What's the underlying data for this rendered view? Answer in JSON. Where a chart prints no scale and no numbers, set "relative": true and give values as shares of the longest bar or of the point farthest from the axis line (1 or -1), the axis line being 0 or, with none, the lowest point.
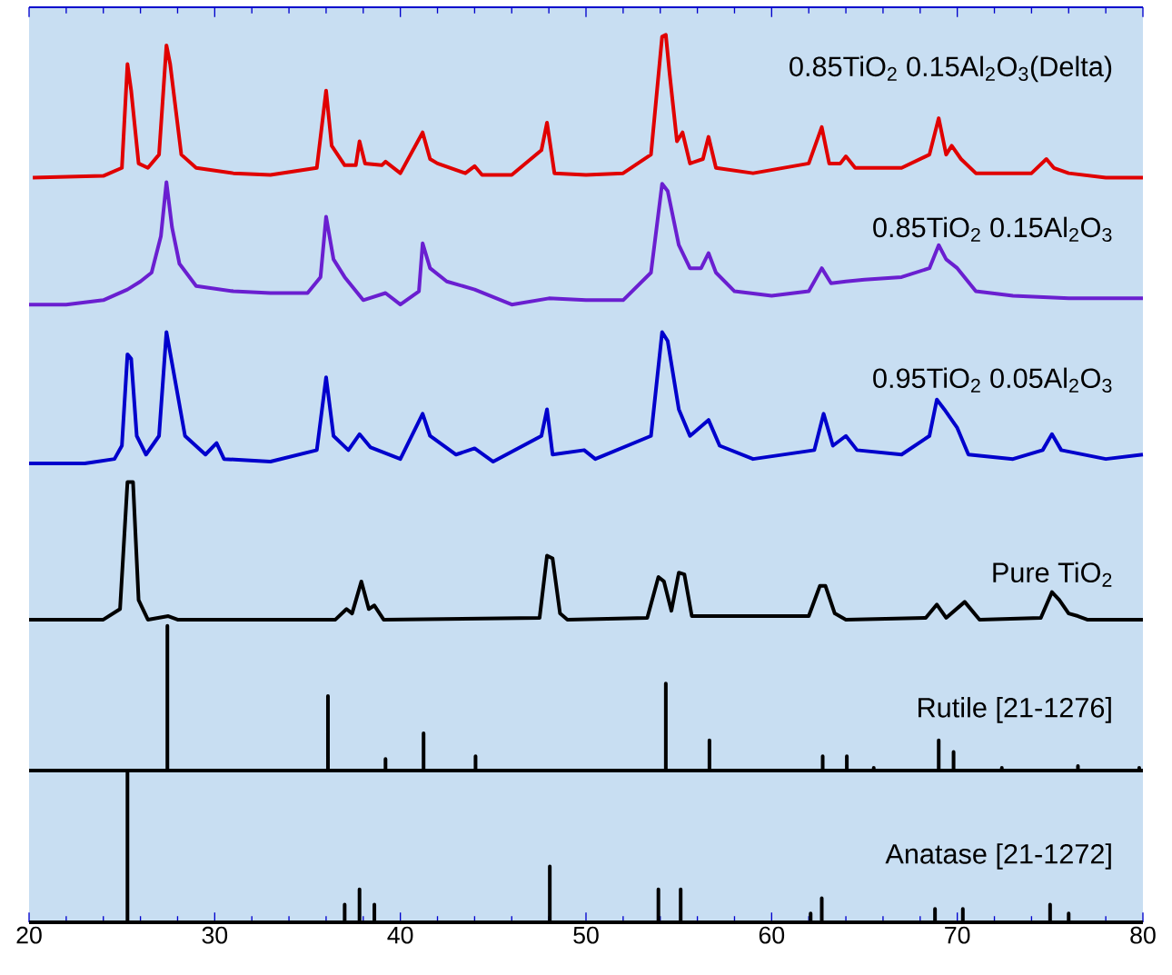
{
  "chart_data": {
    "type": "line",
    "relative": true,
    "xlim": [
      20,
      80
    ],
    "xticks": [
      20,
      30,
      40,
      50,
      60,
      70,
      80
    ],
    "series": [
      {
        "name": "0.85TiO$_{2}$ 0.15Al$_{2}$O$_{3}$(Delta)",
        "color": "#e00000",
        "x": [
          20.2,
          24,
          25.0,
          25.3,
          25.5,
          25.9,
          26.4,
          27.0,
          27.4,
          27.6,
          28.2,
          29,
          31,
          33,
          35.5,
          36.0,
          36.3,
          37,
          37.6,
          37.8,
          38.1,
          39.0,
          39.2,
          40,
          41.2,
          41.6,
          42,
          43.5,
          44,
          44.4,
          46,
          47.6,
          47.9,
          48.3,
          50,
          52,
          53.5,
          54.1,
          54.3,
          54.5,
          54.9,
          55.2,
          55.6,
          56.3,
          56.6,
          57,
          59,
          62,
          62.7,
          63.1,
          63.7,
          64.0,
          64.5,
          67,
          68.5,
          69.0,
          69.4,
          69.7,
          70.2,
          71,
          74,
          74.8,
          75.2,
          76,
          78,
          80
        ],
        "values": [
          0.839,
          0.841,
          0.85,
          0.967,
          0.937,
          0.855,
          0.85,
          0.865,
          0.988,
          0.967,
          0.865,
          0.85,
          0.844,
          0.842,
          0.85,
          0.937,
          0.875,
          0.853,
          0.853,
          0.88,
          0.855,
          0.853,
          0.857,
          0.844,
          0.89,
          0.86,
          0.855,
          0.844,
          0.852,
          0.842,
          0.842,
          0.87,
          0.901,
          0.844,
          0.842,
          0.844,
          0.865,
          0.998,
          1.0,
          0.957,
          0.88,
          0.89,
          0.855,
          0.86,
          0.885,
          0.85,
          0.844,
          0.855,
          0.896,
          0.855,
          0.855,
          0.863,
          0.85,
          0.85,
          0.865,
          0.906,
          0.865,
          0.875,
          0.86,
          0.844,
          0.844,
          0.86,
          0.85,
          0.844,
          0.839,
          0.839
        ]
      },
      {
        "name": "0.85TiO$_{2}$ 0.15Al$_{2}$O$_{3}$",
        "color": "#6a1fd0",
        "x": [
          20,
          22,
          24,
          25.3,
          26,
          26.6,
          27.1,
          27.4,
          27.7,
          28.1,
          29,
          31,
          33,
          35,
          35.7,
          36.0,
          36.4,
          37,
          38,
          39.2,
          40,
          41.0,
          41.2,
          41.6,
          42.5,
          44,
          46,
          48,
          50,
          52,
          53.5,
          54.1,
          54.4,
          55,
          55.6,
          56.2,
          56.6,
          57,
          58,
          60,
          62,
          62.7,
          63.2,
          64.0,
          65,
          67,
          68.5,
          69.0,
          69.4,
          70,
          71,
          73,
          76,
          80
        ],
        "values": [
          0.696,
          0.696,
          0.701,
          0.713,
          0.722,
          0.732,
          0.773,
          0.834,
          0.783,
          0.742,
          0.717,
          0.711,
          0.709,
          0.709,
          0.727,
          0.795,
          0.747,
          0.727,
          0.701,
          0.709,
          0.696,
          0.711,
          0.765,
          0.737,
          0.722,
          0.713,
          0.696,
          0.703,
          0.701,
          0.701,
          0.732,
          0.832,
          0.824,
          0.763,
          0.737,
          0.737,
          0.754,
          0.732,
          0.711,
          0.706,
          0.711,
          0.737,
          0.72,
          0.722,
          0.724,
          0.727,
          0.737,
          0.763,
          0.747,
          0.737,
          0.711,
          0.706,
          0.703,
          0.703
        ]
      },
      {
        "name": "0.95TiO$_{2}$ 0.05Al$_{2}$O$_{3}$",
        "color": "#0000cc",
        "x": [
          20,
          23,
          24.6,
          25.0,
          25.3,
          25.5,
          25.8,
          26.3,
          27.0,
          27.4,
          27.7,
          28.4,
          29.5,
          30.1,
          30.5,
          33,
          35.5,
          36.0,
          36.4,
          37.2,
          37.8,
          38.4,
          40,
          41.2,
          41.6,
          43,
          44,
          45,
          47.6,
          47.9,
          48.2,
          49.9,
          50.5,
          53.5,
          54.1,
          54.4,
          55,
          55.6,
          56.6,
          57.2,
          59,
          62.3,
          62.8,
          63.3,
          64,
          64.6,
          67,
          68.5,
          68.9,
          69.3,
          70,
          70.6,
          73,
          74.6,
          75.1,
          75.6,
          78,
          80
        ],
        "values": [
          0.517,
          0.517,
          0.522,
          0.537,
          0.64,
          0.635,
          0.548,
          0.527,
          0.548,
          0.665,
          0.63,
          0.548,
          0.527,
          0.54,
          0.522,
          0.519,
          0.532,
          0.614,
          0.548,
          0.532,
          0.55,
          0.535,
          0.522,
          0.573,
          0.548,
          0.527,
          0.534,
          0.519,
          0.548,
          0.578,
          0.527,
          0.532,
          0.522,
          0.548,
          0.665,
          0.655,
          0.578,
          0.548,
          0.566,
          0.537,
          0.522,
          0.532,
          0.573,
          0.537,
          0.548,
          0.532,
          0.527,
          0.548,
          0.589,
          0.578,
          0.557,
          0.527,
          0.522,
          0.532,
          0.55,
          0.532,
          0.522,
          0.527
        ]
      },
      {
        "name": "Pure TiO$_{2}$",
        "color": "#000000",
        "x": [
          20,
          24,
          24.9,
          25.3,
          25.6,
          25.9,
          26.4,
          27.5,
          28,
          36.5,
          37.1,
          37.4,
          37.9,
          38.3,
          38.6,
          39.1,
          47.5,
          47.9,
          48.2,
          48.6,
          49,
          53.3,
          53.9,
          54.2,
          54.6,
          55.0,
          55.3,
          55.7,
          62,
          62.6,
          62.9,
          63.4,
          64,
          68.3,
          68.9,
          69.4,
          70.4,
          71.2,
          74.5,
          75.1,
          75.5,
          76,
          76.5,
          77,
          80
        ],
        "values": [
          0.341,
          0.341,
          0.353,
          0.496,
          0.496,
          0.363,
          0.341,
          0.345,
          0.341,
          0.341,
          0.353,
          0.348,
          0.384,
          0.353,
          0.357,
          0.341,
          0.343,
          0.413,
          0.41,
          0.348,
          0.341,
          0.343,
          0.389,
          0.384,
          0.351,
          0.394,
          0.392,
          0.345,
          0.345,
          0.379,
          0.379,
          0.348,
          0.341,
          0.343,
          0.358,
          0.343,
          0.361,
          0.341,
          0.343,
          0.372,
          0.363,
          0.348,
          0.345,
          0.341,
          0.341
        ]
      },
      {
        "name": "Rutile [21-1276]",
        "color": "#000000",
        "x": [
          20,
          27.45,
          27.45,
          27.45,
          36.1,
          36.1,
          36.1,
          39.2,
          39.2,
          39.2,
          41.25,
          41.25,
          41.25,
          44.05,
          44.05,
          44.05,
          54.3,
          54.3,
          54.3,
          56.65,
          56.65,
          56.65,
          62.75,
          62.75,
          62.75,
          64.05,
          64.05,
          64.05,
          65.5,
          65.5,
          65.5,
          69.0,
          69.0,
          69.0,
          69.8,
          69.8,
          69.8,
          72.4,
          72.4,
          72.4,
          76.5,
          76.5,
          76.5,
          79.8,
          79.8,
          79.8,
          80
        ],
        "values": [
          0.171,
          0.171,
          0.334,
          0.171,
          0.171,
          0.255,
          0.171,
          0.171,
          0.184,
          0.171,
          0.171,
          0.213,
          0.171,
          0.171,
          0.187,
          0.171,
          0.171,
          0.269,
          0.171,
          0.171,
          0.205,
          0.171,
          0.171,
          0.187,
          0.171,
          0.171,
          0.187,
          0.171,
          0.171,
          0.174,
          0.171,
          0.171,
          0.205,
          0.171,
          0.171,
          0.192,
          0.171,
          0.171,
          0.174,
          0.171,
          0.171,
          0.176,
          0.171,
          0.171,
          0.174,
          0.171,
          0.171
        ]
      },
      {
        "name": "Anatase [21-1272]",
        "color": "#000000",
        "x": [
          20,
          25.3,
          25.3,
          25.3,
          37.0,
          37.0,
          37.0,
          37.8,
          37.8,
          37.8,
          38.6,
          38.6,
          38.6,
          48.05,
          48.05,
          48.05,
          53.9,
          53.9,
          53.9,
          55.1,
          55.1,
          55.1,
          62.1,
          62.1,
          62.1,
          62.7,
          62.7,
          62.7,
          68.8,
          68.8,
          68.8,
          70.3,
          70.3,
          70.3,
          75.0,
          75.0,
          75.0,
          76.0,
          76.0,
          76.0,
          80
        ],
        "values": [
          0,
          0,
          0.169,
          0,
          0,
          0.02,
          0,
          0,
          0.037,
          0,
          0,
          0.02,
          0,
          0,
          0.063,
          0,
          0,
          0.037,
          0,
          0,
          0.037,
          0,
          0,
          0.01,
          0,
          0,
          0.027,
          0,
          0,
          0.015,
          0,
          0,
          0.015,
          0,
          0,
          0.02,
          0,
          0,
          0.01,
          0,
          0
        ]
      }
    ]
  }
}
